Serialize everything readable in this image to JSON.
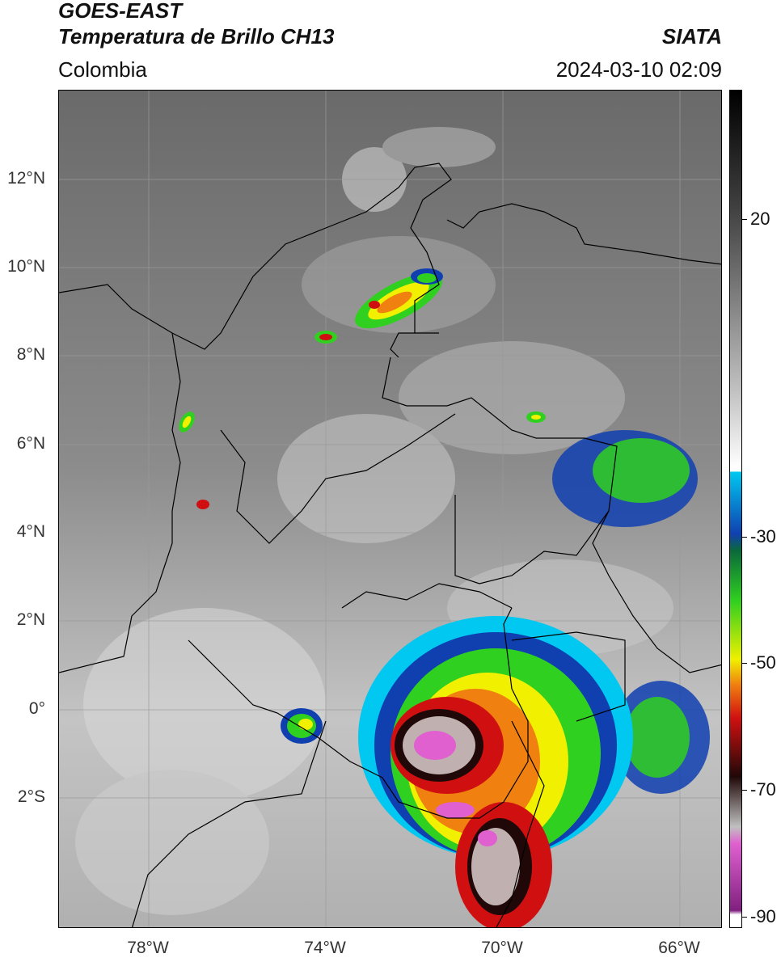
{
  "header": {
    "title_line1": "GOES-EAST",
    "title_line2": "Temperatura de Brillo CH13",
    "organization": "SIATA",
    "region": "Colombia",
    "timestamp": "2024-03-10 02:09"
  },
  "map": {
    "latitude_labels": [
      "12°N",
      "10°N",
      "8°N",
      "6°N",
      "4°N",
      "2°N",
      "0°",
      "2°S"
    ],
    "longitude_labels": [
      "78°W",
      "74°W",
      "70°W",
      "66°W"
    ],
    "extent": {
      "lon_min": -80,
      "lon_max": -65,
      "lat_min": -5,
      "lat_max": 14
    },
    "gridlines": true
  },
  "colorbar": {
    "tick_labels": [
      "20",
      "-30",
      "-50",
      "-70",
      "-90"
    ],
    "colors": {
      "warm": "#808080",
      "cyan": "#00c8f0",
      "blue": "#1040b0",
      "green": "#30d020",
      "yellow": "#f0f000",
      "orange": "#f08010",
      "red": "#d01010",
      "dark": "#200808",
      "gray_cold": "#c0b0b0",
      "magenta": "#e060d0",
      "purple": "#802080"
    }
  }
}
